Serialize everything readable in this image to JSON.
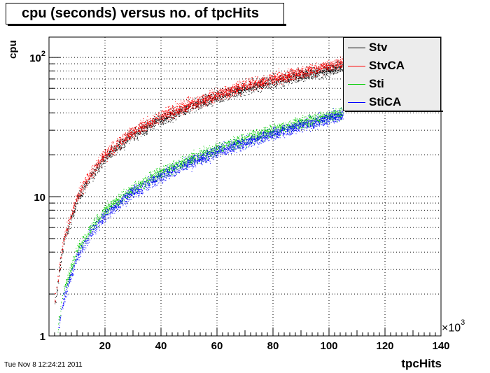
{
  "title": "cpu (seconds) versus no. of tpcHits",
  "timestamp": "Tue Nov  8 12:24:21 2011",
  "chart_data": {
    "type": "scatter",
    "title": "cpu (seconds) versus no. of tpcHits",
    "xlabel": "tpcHits",
    "ylabel": "cpu",
    "x_multiplier": "×10³",
    "x_scale": "linear",
    "y_scale": "log",
    "xlim": [
      0,
      140
    ],
    "ylim": [
      1,
      140
    ],
    "grid": true,
    "legend_position": "top-right",
    "x_ticks": [
      20,
      40,
      60,
      80,
      100,
      120,
      140
    ],
    "y_ticks": [
      {
        "value": 1,
        "label": "1"
      },
      {
        "value": 10,
        "label": "10"
      },
      {
        "value": 100,
        "label": "10",
        "sup": "2"
      }
    ],
    "series": [
      {
        "name": "Stv",
        "color": "#000000",
        "x": [
          2,
          5,
          10,
          15,
          20,
          30,
          40,
          50,
          60,
          70,
          80,
          90,
          100,
          105
        ],
        "y": [
          1.7,
          4.5,
          9.5,
          14,
          19,
          28,
          36,
          44,
          52,
          60,
          67,
          75,
          82,
          86
        ]
      },
      {
        "name": "StvCA",
        "color": "#ff0000",
        "x": [
          2,
          5,
          10,
          15,
          20,
          30,
          40,
          50,
          60,
          70,
          80,
          90,
          100,
          105
        ],
        "y": [
          1.8,
          4.8,
          10,
          15,
          20,
          29.5,
          38,
          46,
          54,
          63,
          70,
          78,
          87,
          92
        ]
      },
      {
        "name": "Sti",
        "color": "#00cc00",
        "x": [
          3,
          5,
          10,
          15,
          20,
          30,
          40,
          50,
          60,
          70,
          80,
          90,
          100,
          105
        ],
        "y": [
          1.1,
          2.0,
          4.1,
          6.0,
          8.0,
          11.5,
          15,
          18.5,
          22,
          26,
          30,
          34,
          38,
          40
        ]
      },
      {
        "name": "StiCA",
        "color": "#0000ff",
        "x": [
          3,
          5,
          10,
          15,
          20,
          30,
          40,
          50,
          60,
          70,
          80,
          90,
          100,
          105
        ],
        "y": [
          1.0,
          1.8,
          3.7,
          5.5,
          7.4,
          10.8,
          14,
          17.5,
          21,
          24.5,
          28.5,
          32.5,
          36.5,
          39
        ]
      }
    ]
  }
}
